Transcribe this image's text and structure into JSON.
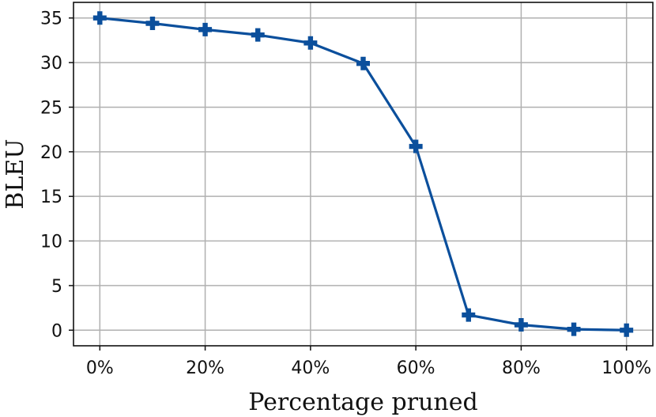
{
  "chart_data": {
    "type": "line",
    "title": "",
    "xlabel": "Percentage pruned",
    "ylabel": "BLEU",
    "x": [
      0,
      10,
      20,
      30,
      40,
      50,
      60,
      70,
      80,
      90,
      100
    ],
    "series": [
      {
        "values": [
          35.0,
          34.4,
          33.7,
          33.1,
          32.2,
          29.9,
          20.6,
          1.7,
          0.6,
          0.1,
          0.0
        ],
        "color": "#0b4f9c",
        "marker": "plus"
      }
    ],
    "xticks": [
      0,
      20,
      40,
      60,
      80,
      100
    ],
    "xtick_labels": [
      "0%",
      "20%",
      "40%",
      "60%",
      "80%",
      "100%"
    ],
    "yticks": [
      0,
      5,
      10,
      15,
      20,
      25,
      30,
      35
    ],
    "ytick_labels": [
      "0",
      "5",
      "10",
      "15",
      "20",
      "25",
      "30",
      "35"
    ],
    "xlim": [
      -5,
      105
    ],
    "ylim": [
      -1.75,
      36.75
    ],
    "grid": true,
    "legend": "none"
  }
}
